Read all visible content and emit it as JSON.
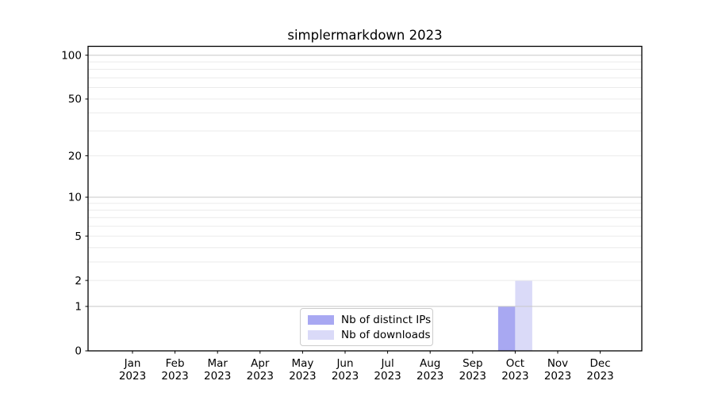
{
  "chart_data": {
    "type": "bar",
    "title": "simplermarkdown 2023",
    "categories": [
      "Jan 2023",
      "Feb 2023",
      "Mar 2023",
      "Apr 2023",
      "May 2023",
      "Jun 2023",
      "Jul 2023",
      "Aug 2023",
      "Sep 2023",
      "Oct 2023",
      "Nov 2023",
      "Dec 2023"
    ],
    "series": [
      {
        "name": "Nb of distinct IPs",
        "color": "#a8a8f2",
        "values": [
          0,
          0,
          0,
          0,
          0,
          0,
          0,
          0,
          0,
          1,
          0,
          0
        ]
      },
      {
        "name": "Nb of downloads",
        "color": "#dadaf8",
        "values": [
          0,
          0,
          0,
          0,
          0,
          0,
          0,
          0,
          0,
          2,
          0,
          0
        ]
      }
    ],
    "y_ticks": [
      0,
      1,
      2,
      5,
      10,
      20,
      50,
      100
    ],
    "y_scale": "log10(1+y)",
    "ylim": [
      0,
      115
    ],
    "xlabel": "",
    "ylabel": "",
    "grid": "horizontal",
    "grid_major_color": "#c8c8c8",
    "grid_minor_color": "#ebebeb",
    "axis_color": "#000000",
    "legend_position": "lower center"
  }
}
